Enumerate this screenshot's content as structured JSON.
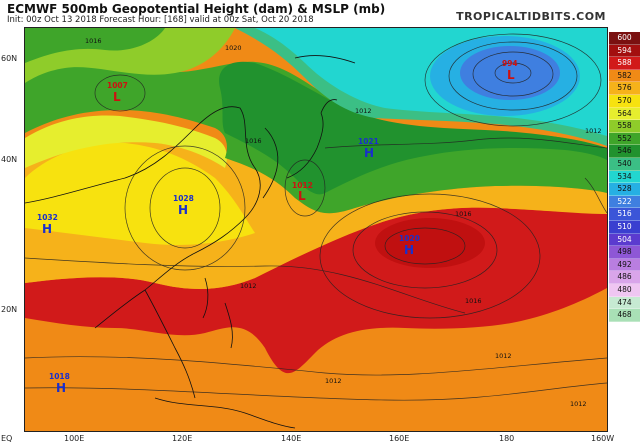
{
  "header": {
    "title": "ECMWF 500mb Geopotential Height (dam) & MSLP (mb)",
    "subtitle": "Init: 00z Oct 13 2018   Forecast Hour: [168]   valid at 00z Sat, Oct 20 2018",
    "brand": "TROPICALTIDBITS.COM"
  },
  "axes": {
    "lat_labels": [
      "60N",
      "40N",
      "20N",
      "EQ"
    ],
    "lon_labels": [
      "100E",
      "120E",
      "140E",
      "160E",
      "180",
      "160W"
    ]
  },
  "pressure_centers": [
    {
      "type": "L",
      "value": "1007",
      "color": "#cc1111"
    },
    {
      "type": "L",
      "value": "994",
      "color": "#cc1111"
    },
    {
      "type": "L",
      "value": "1012",
      "color": "#cc1111"
    },
    {
      "type": "H",
      "value": "1021",
      "color": "#1a2fcc"
    },
    {
      "type": "H",
      "value": "1028",
      "color": "#1a2fcc"
    },
    {
      "type": "H",
      "value": "1032",
      "color": "#1a2fcc"
    },
    {
      "type": "H",
      "value": "1020",
      "color": "#1a2fcc"
    },
    {
      "type": "H",
      "value": "1018",
      "color": "#1a2fcc"
    }
  ],
  "isobar_labels": [
    "1016",
    "1020",
    "1012",
    "1016",
    "1012",
    "1016",
    "1012",
    "1012",
    "1016",
    "1012",
    "1012"
  ],
  "colorbar": {
    "units": "dam",
    "levels": [
      {
        "value": "600",
        "color": "#7a1010"
      },
      {
        "value": "594",
        "color": "#a30f0f"
      },
      {
        "value": "588",
        "color": "#d11a1a"
      },
      {
        "value": "582",
        "color": "#f08a16"
      },
      {
        "value": "576",
        "color": "#f6b21a"
      },
      {
        "value": "570",
        "color": "#f7e20f"
      },
      {
        "value": "564",
        "color": "#e6ee2e"
      },
      {
        "value": "558",
        "color": "#8fcc2a"
      },
      {
        "value": "552",
        "color": "#3fa52a"
      },
      {
        "value": "546",
        "color": "#21922e"
      },
      {
        "value": "540",
        "color": "#3bbf85"
      },
      {
        "value": "534",
        "color": "#22d6d0"
      },
      {
        "value": "528",
        "color": "#26b0e3"
      },
      {
        "value": "522",
        "color": "#3f7fe0"
      },
      {
        "value": "516",
        "color": "#3b55d8"
      },
      {
        "value": "510",
        "color": "#3a3fd0"
      },
      {
        "value": "504",
        "color": "#5b3bcf"
      },
      {
        "value": "498",
        "color": "#8e57d6"
      },
      {
        "value": "492",
        "color": "#b97ee0"
      },
      {
        "value": "486",
        "color": "#d9a5ea"
      },
      {
        "value": "480",
        "color": "#efc6f2"
      },
      {
        "value": "474",
        "color": "#c6ead2"
      },
      {
        "value": "468",
        "color": "#a9e0b6"
      }
    ]
  }
}
